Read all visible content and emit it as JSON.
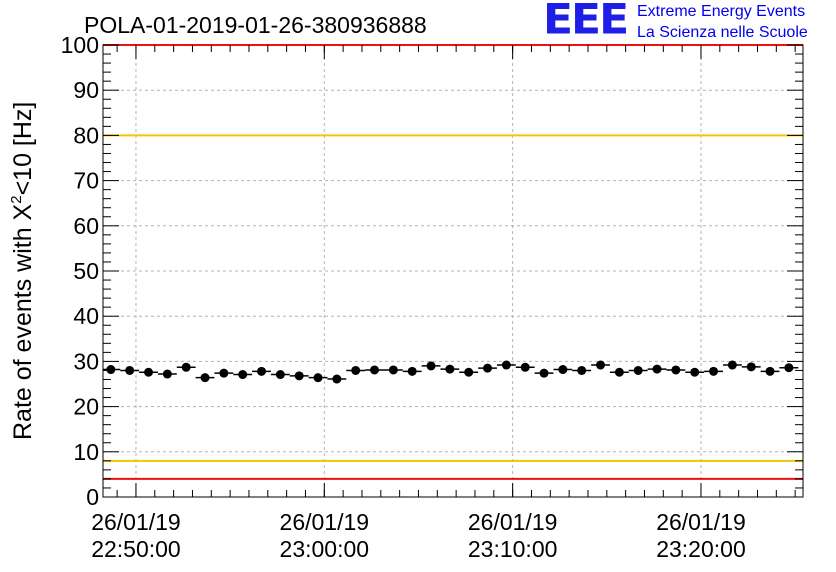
{
  "chart_data": {
    "type": "scatter",
    "title": "POLA-01-2019-01-26-380936888",
    "ylabel": "Rate of events with X²<10 [Hz]",
    "ylabel_parts": {
      "pre": "Rate of events with X",
      "sup": "2",
      "post": "<10 [Hz]"
    },
    "xlabel": "",
    "ylim": [
      0,
      100
    ],
    "yticks": [
      0,
      10,
      20,
      30,
      40,
      50,
      60,
      70,
      80,
      90,
      100
    ],
    "x_axis_type": "time",
    "xlim": [
      "2019-01-26 22:48:15",
      "2019-01-26 23:25:25"
    ],
    "xticks": [
      {
        "time": "2019-01-26 22:50:00",
        "date_label": "26/01/19",
        "time_label": "22:50:00"
      },
      {
        "time": "2019-01-26 23:00:00",
        "date_label": "26/01/19",
        "time_label": "23:00:00"
      },
      {
        "time": "2019-01-26 23:10:00",
        "date_label": "26/01/19",
        "time_label": "23:10:00"
      },
      {
        "time": "2019-01-26 23:20:00",
        "date_label": "26/01/19",
        "time_label": "23:20:00"
      }
    ],
    "grid": true,
    "reference_lines": [
      {
        "y": 100,
        "color": "#ee1111"
      },
      {
        "y": 80,
        "color": "#f2c500"
      },
      {
        "y": 8,
        "color": "#f2c500"
      },
      {
        "y": 4,
        "color": "#ee1111"
      }
    ],
    "series": [
      {
        "marker_color": "#000000",
        "x_bin_width_min": 1,
        "x": [
          "22:48:40",
          "22:49:40",
          "22:50:40",
          "22:51:40",
          "22:52:40",
          "22:53:40",
          "22:54:40",
          "22:55:40",
          "22:56:40",
          "22:57:40",
          "22:58:40",
          "22:59:40",
          "23:00:40",
          "23:01:40",
          "23:02:40",
          "23:03:40",
          "23:04:40",
          "23:05:40",
          "23:06:40",
          "23:07:40",
          "23:08:40",
          "23:09:40",
          "23:10:40",
          "23:11:40",
          "23:12:40",
          "23:13:40",
          "23:14:40",
          "23:15:40",
          "23:16:40",
          "23:17:40",
          "23:18:40",
          "23:19:40",
          "23:20:40",
          "23:21:40",
          "23:22:40",
          "23:23:40",
          "23:24:40"
        ],
        "y": [
          28.2,
          28.0,
          27.6,
          27.2,
          28.7,
          26.4,
          27.4,
          27.1,
          27.8,
          27.1,
          26.8,
          26.4,
          26.1,
          28.0,
          28.1,
          28.1,
          27.8,
          29.0,
          28.3,
          27.6,
          28.5,
          29.2,
          28.7,
          27.4,
          28.2,
          28.0,
          29.2,
          27.6,
          28.0,
          28.3,
          28.1,
          27.6,
          27.8,
          29.2,
          28.8,
          27.8,
          28.6
        ]
      }
    ]
  },
  "logo": {
    "mark": "EEE",
    "line1": "Extreme Energy Events",
    "line2": "La Scienza nelle Scuole",
    "color": "#1e1ee6"
  }
}
